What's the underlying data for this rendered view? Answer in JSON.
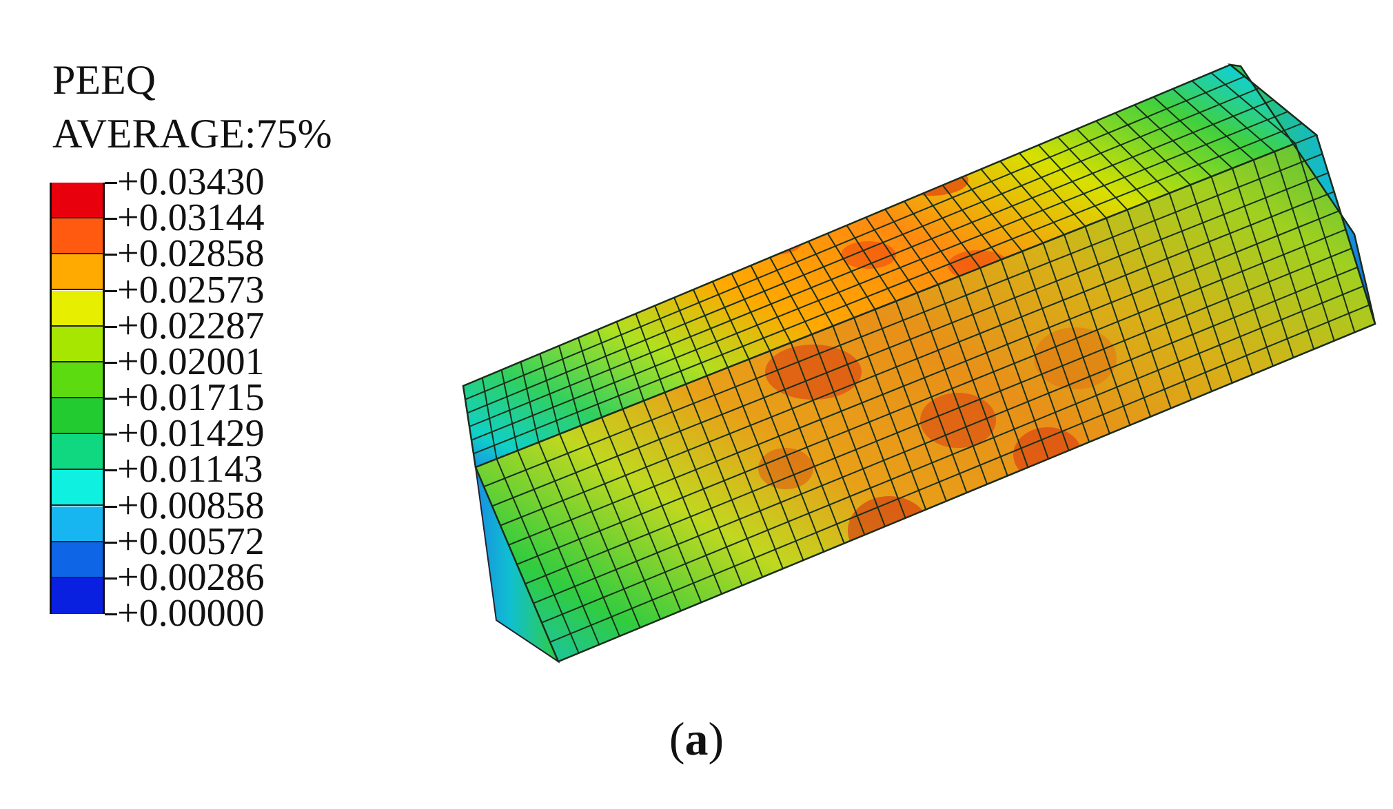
{
  "legend": {
    "variable": "PEEQ",
    "averaging": "AVERAGE:75%",
    "labels": [
      "+0.03430",
      "+0.03144",
      "+0.02858",
      "+0.02573",
      "+0.02287",
      "+0.02001",
      "+0.01715",
      "+0.01429",
      "+0.01143",
      "+0.00858",
      "+0.00572",
      "+0.00286",
      "+0.00000"
    ],
    "colors": [
      "#e8000c",
      "#ff5a10",
      "#ffaa00",
      "#e8ee00",
      "#a6e600",
      "#5cdc10",
      "#22cc30",
      "#10d880",
      "#10f0e0",
      "#18b6f0",
      "#0e66e6",
      "#0a20e0"
    ]
  },
  "caption": {
    "open": "(",
    "letter": "a",
    "close": ")"
  }
}
